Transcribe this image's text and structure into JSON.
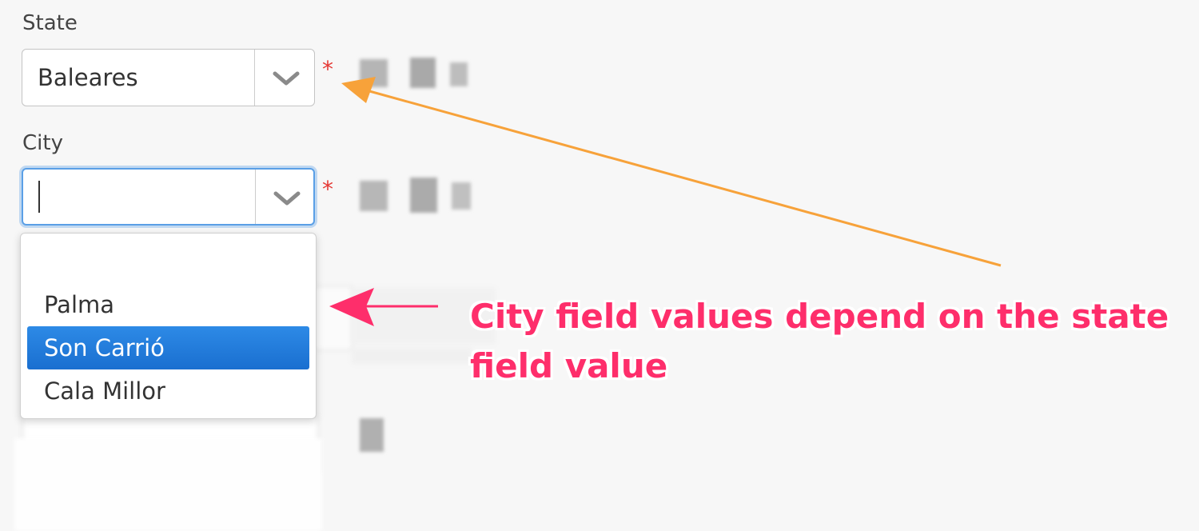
{
  "form": {
    "state": {
      "label": "State",
      "value": "Baleares",
      "required_mark": "*"
    },
    "city": {
      "label": "City",
      "value": "",
      "required_mark": "*"
    }
  },
  "city_dropdown": {
    "options": [
      "",
      "Palma",
      "Son Carrió",
      "Cala Millor"
    ],
    "highlighted": "Son Carrió"
  },
  "annotation": {
    "text": "City field values depend on the state field value",
    "color": "#fe2e6b",
    "arrow_colors": {
      "orange": "#f7a23a",
      "pink": "#fe2e6b"
    }
  }
}
